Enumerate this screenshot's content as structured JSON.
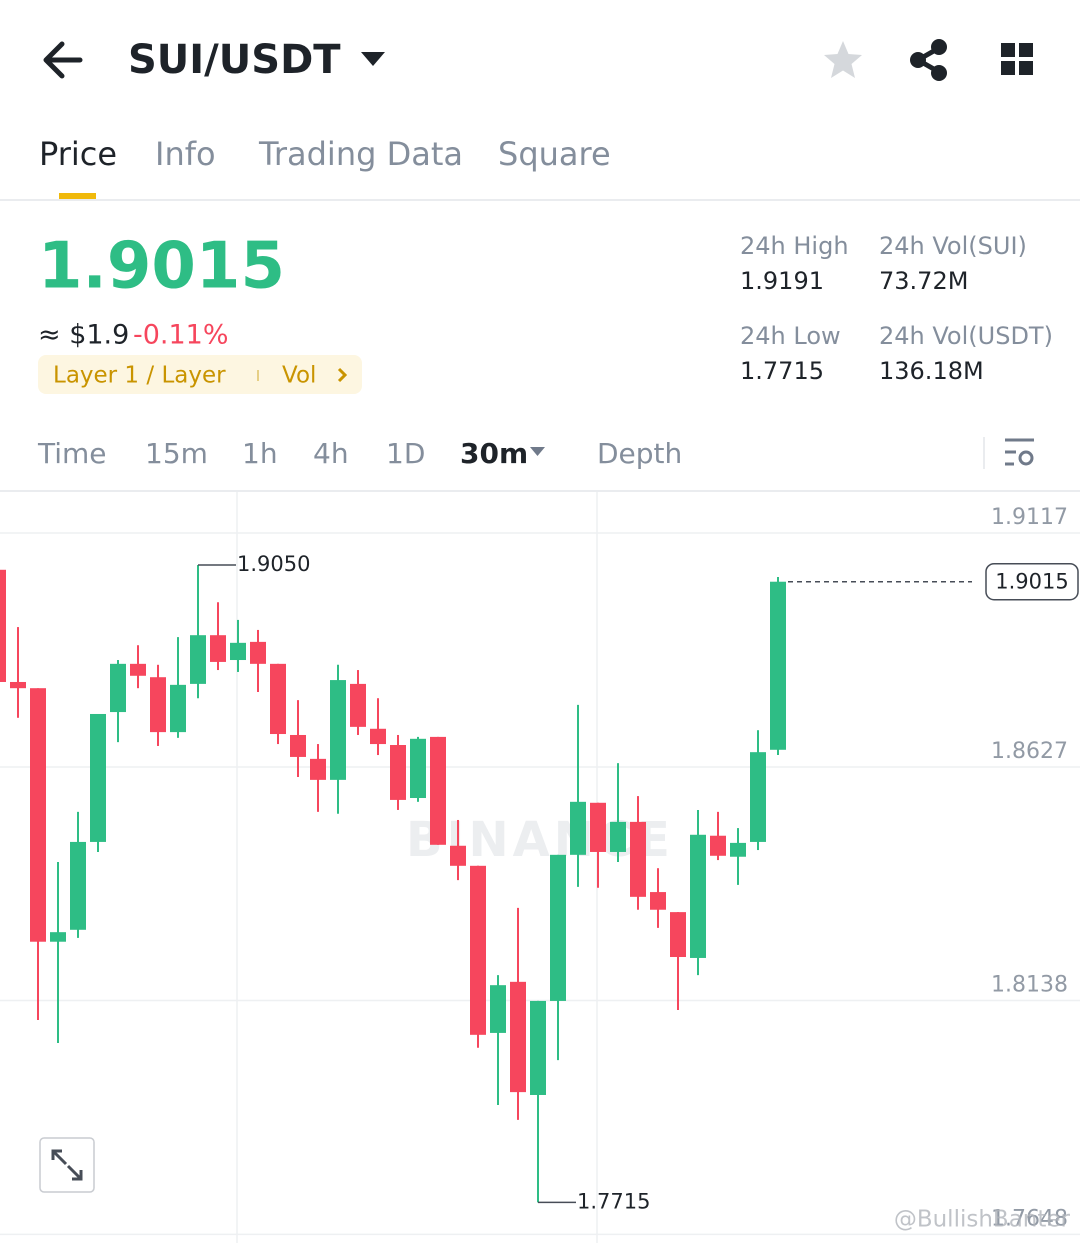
{
  "header": {
    "title": "SUI/USDT"
  },
  "tabs": [
    "Price",
    "Info",
    "Trading Data",
    "Square"
  ],
  "ticker": {
    "price": "1.9015",
    "approx": "≈ $1.9",
    "change": "-0.11%",
    "tag": "Layer 1 / Layer",
    "tag_vol": "Vol"
  },
  "stats": [
    {
      "label": "24h High",
      "value": "1.9191"
    },
    {
      "label": "24h Vol(SUI)",
      "value": "73.72M"
    },
    {
      "label": "24h Low",
      "value": "1.7715"
    },
    {
      "label": "24h Vol(USDT)",
      "value": "136.18M"
    }
  ],
  "timeframes": [
    "Time",
    "15m",
    "1h",
    "4h",
    "1D",
    "30m",
    "Depth"
  ],
  "watermark": "@BullishBanter",
  "chart_data": {
    "type": "candlestick",
    "brand": "BINANCE",
    "up_color": "#2ebd85",
    "down_color": "#f6465d",
    "ylim": [
      1.763,
      1.9205
    ],
    "yticks": [
      1.9117,
      1.8627,
      1.8138,
      1.7648
    ],
    "grid": true,
    "high_mark": {
      "value": 1.905,
      "label": "1.9050"
    },
    "low_mark": {
      "value": 1.7715,
      "label": "1.7715"
    },
    "last_price": {
      "value": 1.9015,
      "label": "1.9015"
    },
    "open": [
      1.904,
      1.8805,
      1.8792,
      1.8261,
      1.8286,
      1.847,
      1.8742,
      1.8843,
      1.8815,
      1.87,
      1.8801,
      1.8903,
      1.8851,
      1.8889,
      1.8843,
      1.8694,
      1.8644,
      1.86,
      1.8801,
      1.8707,
      1.8673,
      1.8562,
      1.869,
      1.8462,
      1.842,
      1.807,
      1.8177,
      1.794,
      1.8137,
      1.8443,
      1.8552,
      1.8449,
      1.8512,
      1.8365,
      1.8323,
      1.8227,
      1.8483,
      1.8439,
      1.847,
      1.8663
    ],
    "high": [
      1.904,
      1.892,
      1.8792,
      1.8428,
      1.8533,
      1.8738,
      1.8851,
      1.8882,
      1.8841,
      1.8899,
      1.905,
      1.8972,
      1.8935,
      1.8914,
      1.8843,
      1.8767,
      1.8675,
      1.8841,
      1.883,
      1.8771,
      1.8694,
      1.869,
      1.869,
      1.8516,
      1.842,
      1.8191,
      1.8332,
      1.8137,
      1.8443,
      1.8757,
      1.8552,
      1.8635,
      1.8566,
      1.8415,
      1.8323,
      1.8537,
      1.8533,
      1.8499,
      1.8704,
      1.9025
    ],
    "low": [
      1.8805,
      1.873,
      1.8097,
      1.8049,
      1.8269,
      1.8449,
      1.8679,
      1.8792,
      1.8671,
      1.8688,
      1.8771,
      1.883,
      1.8826,
      1.8784,
      1.8675,
      1.8606,
      1.8533,
      1.8529,
      1.8694,
      1.8652,
      1.8537,
      1.8554,
      1.8464,
      1.839,
      1.8039,
      1.7919,
      1.7888,
      1.7715,
      1.8013,
      1.8376,
      1.8374,
      1.8428,
      1.8328,
      1.829,
      1.8118,
      1.8191,
      1.8432,
      1.838,
      1.8453,
      1.8652
    ],
    "close": [
      1.8805,
      1.8792,
      1.8261,
      1.8281,
      1.847,
      1.8738,
      1.8843,
      1.8818,
      1.87,
      1.8799,
      1.8903,
      1.8847,
      1.8887,
      1.8843,
      1.8696,
      1.8648,
      1.86,
      1.8809,
      1.8711,
      1.8675,
      1.8558,
      1.8686,
      1.8464,
      1.842,
      1.8066,
      1.817,
      1.7946,
      1.8137,
      1.8443,
      1.8554,
      1.8449,
      1.8512,
      1.8355,
      1.8328,
      1.8229,
      1.8485,
      1.8441,
      1.8468,
      1.8658,
      1.9015
    ]
  }
}
